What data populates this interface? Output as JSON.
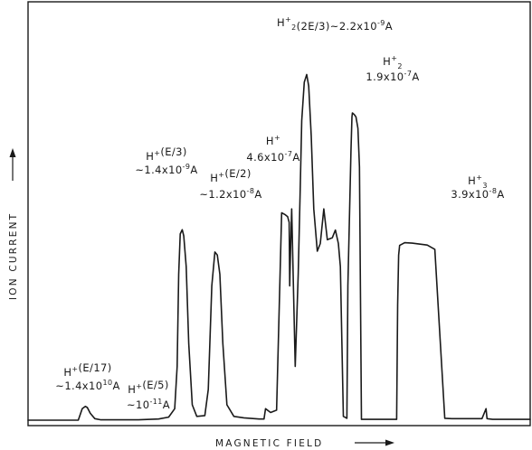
{
  "chart_data": {
    "type": "line",
    "title": "",
    "xlabel": "MAGNETIC FIELD",
    "ylabel": "ION CURRENT",
    "x_arrow": "→",
    "y_arrow": "→",
    "grid": false,
    "legend": "none",
    "colors": {
      "trace": "#1a1a1a",
      "frame": "#1a1a1a",
      "background": "#ffffff"
    },
    "xlim": [
      0,
      100
    ],
    "ylim": [
      0,
      100
    ],
    "peaks": [
      {
        "ion": "H",
        "charge": "+",
        "sub": "",
        "energy": "(E/17)",
        "current_prefix": "~1.4x10",
        "current_exp": "10",
        "current_unit": "A",
        "x": 11.6,
        "height": 3.6
      },
      {
        "ion": "H",
        "charge": "+",
        "sub": "",
        "energy": "(E/5)",
        "current_prefix": "~10",
        "current_exp": "-11",
        "current_unit": "A",
        "x": 27.5,
        "height": 0.4
      },
      {
        "ion": "H",
        "charge": "+",
        "sub": "",
        "energy": "(E/3)",
        "current_prefix": "~1.4x10",
        "current_exp": "-9",
        "current_unit": "A",
        "x": 30.6,
        "height": 49.6
      },
      {
        "ion": "H",
        "charge": "+",
        "sub": "",
        "energy": "(E/2)",
        "current_prefix": "~1.2x10",
        "current_exp": "-8",
        "current_unit": "A",
        "x": 37.1,
        "height": 44.0
      },
      {
        "ion": "H",
        "charge": "+",
        "sub": "",
        "energy": "",
        "current_prefix": "4.6x10",
        "current_exp": "-7",
        "current_unit": "A",
        "x": 50.7,
        "height": 54.0
      },
      {
        "ion": "H",
        "charge": "+",
        "sub": "2",
        "energy": "(2E/3)",
        "current_prefix": "~2.2x10",
        "current_exp": "-9",
        "current_unit": "A",
        "x": 58.2,
        "height": 90.0
      },
      {
        "ion": "H",
        "charge": "+",
        "sub": "2",
        "energy": "",
        "current_prefix": "1.9x10",
        "current_exp": "-7",
        "current_unit": "A",
        "x": 71.0,
        "height": 80.0
      },
      {
        "ion": "H",
        "charge": "+",
        "sub": "3",
        "energy": "",
        "current_prefix": "3.9x10",
        "current_exp": "-8",
        "current_unit": "A",
        "x": 87.1,
        "height": 46.0
      }
    ],
    "trace": {
      "x": [
        0.0,
        10.0,
        10.8,
        11.4,
        11.8,
        12.4,
        13.3,
        14.5,
        18.0,
        22.0,
        26.0,
        28.0,
        29.2,
        29.7,
        30.0,
        30.3,
        30.7,
        31.0,
        31.5,
        32.0,
        32.7,
        33.6,
        35.2,
        35.9,
        36.6,
        37.2,
        37.7,
        38.2,
        38.8,
        39.6,
        41.0,
        43.0,
        46.0,
        47.0,
        47.3,
        48.3,
        49.5,
        50.5,
        51.2,
        51.7,
        52.0,
        52.1,
        52.3,
        52.5,
        52.8,
        53.2,
        53.8,
        54.2,
        54.5,
        55.0,
        55.5,
        55.9,
        56.4,
        56.9,
        57.6,
        58.2,
        58.9,
        59.6,
        60.6,
        61.2,
        61.8,
        62.2,
        62.8,
        63.5,
        63.7,
        64.3,
        64.5,
        64.6,
        64.8,
        65.0,
        65.3,
        65.7,
        66.0,
        66.4,
        68.2,
        68.4,
        68.8,
        69.5,
        72.5,
        73.4,
        73.6,
        73.8,
        74.0,
        75.0,
        76.5,
        79.5,
        81.0,
        83.0,
        84.4,
        84.6,
        85.8,
        88.2,
        89.4,
        90.2,
        90.4,
        91.2,
        91.4,
        92.5,
        93.5,
        94.0,
        94.2,
        94.4,
        100.0
      ],
      "y": [
        0.0,
        0.0,
        3.0,
        3.6,
        3.3,
        1.8,
        0.4,
        0.1,
        0.1,
        0.1,
        0.3,
        0.8,
        3.0,
        14.0,
        38.0,
        48.5,
        49.6,
        48.0,
        40.0,
        20.0,
        4.0,
        1.0,
        1.2,
        8.0,
        35.0,
        43.8,
        43.0,
        38.0,
        20.0,
        4.0,
        1.0,
        0.6,
        0.3,
        0.3,
        3.0,
        2.0,
        2.6,
        54.0,
        53.5,
        53.0,
        51.5,
        35.0,
        46.0,
        55.0,
        38.0,
        14.0,
        38.0,
        60.0,
        78.0,
        88.0,
        90.0,
        87.0,
        74.0,
        55.0,
        44.0,
        46.0,
        55.0,
        47.0,
        47.5,
        49.5,
        46.0,
        40.0,
        1.0,
        0.5,
        35.0,
        70.0,
        79.0,
        80.0,
        79.8,
        79.5,
        79.0,
        76.0,
        66.0,
        0.2,
        0.2,
        0.2,
        0.2,
        0.2,
        0.2,
        0.2,
        30.0,
        43.0,
        45.5,
        46.2,
        46.1,
        45.6,
        44.5,
        0.5,
        0.4,
        0.4,
        0.4,
        0.4,
        0.4,
        0.4,
        0.4,
        3.0,
        0.4,
        0.2,
        0.2,
        0.2,
        0.2,
        0.2,
        0.2
      ]
    }
  }
}
